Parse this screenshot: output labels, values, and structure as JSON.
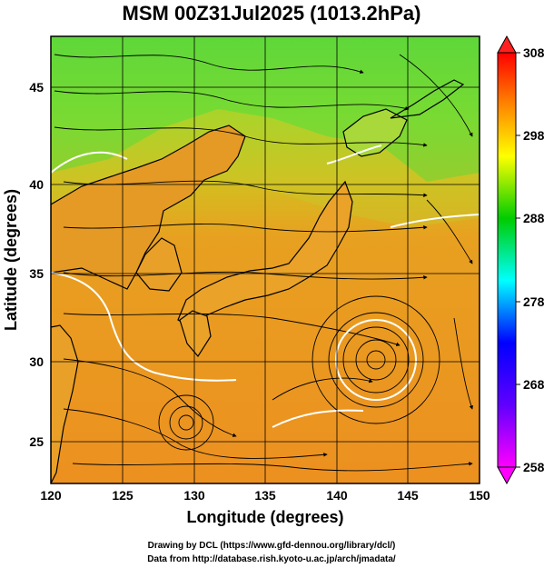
{
  "title": "MSM 00Z31Jul2025 (1013.2hPa)",
  "map": {
    "xlabel": "Longitude (degrees)",
    "ylabel": "Latitude  (degrees)",
    "x_ticks": [
      "120",
      "125",
      "130",
      "135",
      "140",
      "145",
      "150"
    ],
    "y_ticks": [
      "25",
      "30",
      "35",
      "40",
      "45"
    ],
    "lon_range": [
      120,
      150
    ],
    "lat_range": [
      22.4,
      47.6
    ],
    "field": "temperature (K)",
    "vortex_centers": [
      {
        "lon": 143,
        "lat": 30
      },
      {
        "lon": 129.6,
        "lat": 26.3
      }
    ]
  },
  "colorbar": {
    "tick_labels": [
      "308",
      "298",
      "288",
      "278",
      "268",
      "258"
    ],
    "range": [
      258,
      308
    ],
    "colors": [
      "#ff00ff",
      "#0000ff",
      "#00ffff",
      "#00cc00",
      "#ffff00",
      "#ff8000",
      "#ff0000"
    ]
  },
  "credits": {
    "line1": "Drawing by DCL (https://www.gfd-dennou.org/library/dcl/)",
    "line2": "Data from http://database.rish.kyoto-u.ac.jp/arch/jmadata/"
  }
}
